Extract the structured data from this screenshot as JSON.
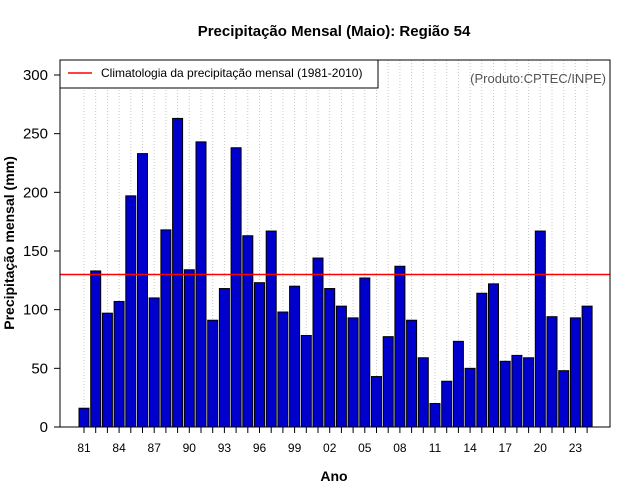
{
  "chart_data": {
    "type": "bar",
    "title": "Precipitação Mensal (Maio): Região 54",
    "xlabel": "Ano",
    "ylabel": "Precipitação mensal (mm)",
    "ylim": [
      0,
      310
    ],
    "yticks": [
      0,
      50,
      100,
      150,
      200,
      250,
      300
    ],
    "x": [
      "81",
      "82",
      "83",
      "84",
      "85",
      "86",
      "87",
      "88",
      "89",
      "90",
      "91",
      "92",
      "93",
      "94",
      "95",
      "96",
      "97",
      "98",
      "99",
      "00",
      "01",
      "02",
      "03",
      "04",
      "05",
      "06",
      "07",
      "08",
      "09",
      "10",
      "11",
      "12",
      "13",
      "14",
      "15",
      "16",
      "17",
      "18",
      "19",
      "20",
      "21",
      "22",
      "23",
      "24"
    ],
    "xtick_labels": [
      "81",
      "84",
      "87",
      "90",
      "93",
      "96",
      "99",
      "02",
      "05",
      "08",
      "11",
      "14",
      "17",
      "20",
      "23"
    ],
    "values": [
      16,
      133,
      97,
      107,
      197,
      233,
      110,
      168,
      263,
      134,
      243,
      91,
      118,
      238,
      163,
      123,
      167,
      98,
      120,
      78,
      144,
      118,
      103,
      93,
      127,
      43,
      77,
      137,
      91,
      59,
      20,
      39,
      73,
      50,
      114,
      122,
      56,
      61,
      59,
      167,
      94,
      48,
      93,
      103
    ],
    "bar_color": "#0000cc",
    "climatology": {
      "label": "Climatologia da precipitação mensal (1981-2010)",
      "value": 130,
      "color": "#ff0000"
    },
    "grid": "vertical-dotted",
    "legend_position": "top-left",
    "annotation": "(Produto:CPTEC/INPE)"
  }
}
